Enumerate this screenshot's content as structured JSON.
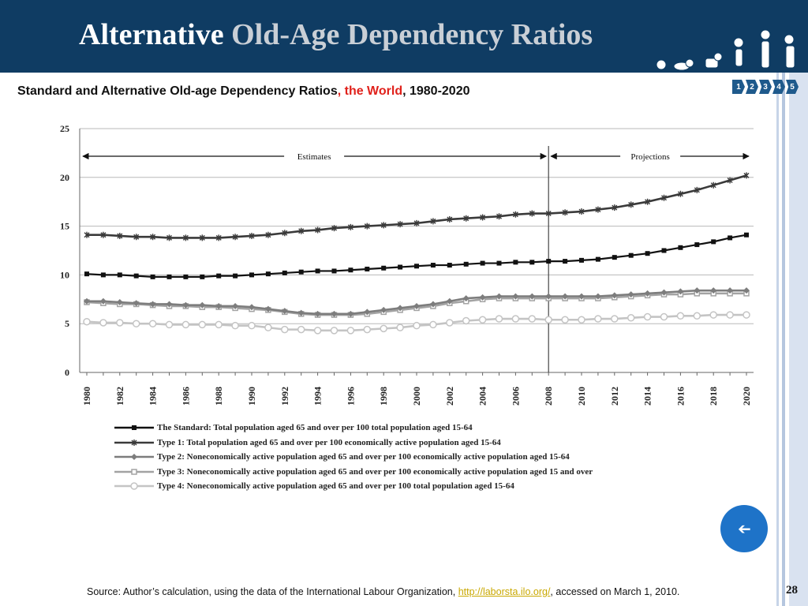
{
  "slide": {
    "title_main": "Alternative",
    "title_highlight": "Old-Age Dependency Ratios",
    "subtitle_part1": "Standard and Alternative Old-age Dependency Ratios",
    "subtitle_world": ", the World",
    "subtitle_part2": ", 1980-2020",
    "nav_tabs": [
      "1",
      "2",
      "3",
      "4",
      "5"
    ],
    "back_icon": "arrow-left-icon",
    "source_prefix": "Source: Author’s calculation, using the data of the International Labour Organization, ",
    "source_link": "http://laborsta.ilo.org/",
    "source_suffix": ", accessed on March 1, 2010.",
    "page_number": "28",
    "colors": {
      "header": "#0f3c63",
      "title_highlight": "#c9cfd6",
      "red": "#e0211b",
      "button": "#1e73c8",
      "link": "#c9a800"
    }
  },
  "chart_data": {
    "type": "line",
    "title": "Standard and Alternative Old-age Dependency Ratios, the World, 1980-2020",
    "x": [
      1980,
      1981,
      1982,
      1983,
      1984,
      1985,
      1986,
      1987,
      1988,
      1989,
      1990,
      1991,
      1992,
      1993,
      1994,
      1995,
      1996,
      1997,
      1998,
      1999,
      2000,
      2001,
      2002,
      2003,
      2004,
      2005,
      2006,
      2007,
      2008,
      2009,
      2010,
      2011,
      2012,
      2013,
      2014,
      2015,
      2016,
      2017,
      2018,
      2019,
      2020
    ],
    "x_tick_labels": [
      "1980",
      "1982",
      "1984",
      "1986",
      "1988",
      "1990",
      "1992",
      "1994",
      "1996",
      "1998",
      "2000",
      "2002",
      "2004",
      "2006",
      "2008",
      "2010",
      "2012",
      "2014",
      "2016",
      "2018",
      "2020"
    ],
    "ylim": [
      0,
      25
    ],
    "y_ticks": [
      "0",
      "5",
      "10",
      "15",
      "20",
      "25"
    ],
    "grid": true,
    "legend_position": "bottom",
    "annotations": {
      "estimates": "Estimates",
      "projections": "Projections",
      "divider_year": 2008
    },
    "series": [
      {
        "name": "The Standard: Total population aged 65 and over per 100 total population aged 15-64",
        "color": "#111111",
        "marker": "square",
        "values": [
          10.1,
          10.0,
          10.0,
          9.9,
          9.8,
          9.8,
          9.8,
          9.8,
          9.9,
          9.9,
          10.0,
          10.1,
          10.2,
          10.3,
          10.4,
          10.4,
          10.5,
          10.6,
          10.7,
          10.8,
          10.9,
          11.0,
          11.0,
          11.1,
          11.2,
          11.2,
          11.3,
          11.3,
          11.4,
          11.4,
          11.5,
          11.6,
          11.8,
          12.0,
          12.2,
          12.5,
          12.8,
          13.1,
          13.4,
          13.8,
          14.1
        ]
      },
      {
        "name": "Type 1: Total population aged 65 and over per 100 economically active population aged 15-64",
        "color": "#3a3a3a",
        "marker": "star",
        "values": [
          14.1,
          14.1,
          14.0,
          13.9,
          13.9,
          13.8,
          13.8,
          13.8,
          13.8,
          13.9,
          14.0,
          14.1,
          14.3,
          14.5,
          14.6,
          14.8,
          14.9,
          15.0,
          15.1,
          15.2,
          15.3,
          15.5,
          15.7,
          15.8,
          15.9,
          16.0,
          16.2,
          16.3,
          16.3,
          16.4,
          16.5,
          16.7,
          16.9,
          17.2,
          17.5,
          17.9,
          18.3,
          18.7,
          19.2,
          19.7,
          20.2
        ]
      },
      {
        "name": "Type 2: Noneconomically active population aged 65 and over per 100 economically active population aged 15-64",
        "color": "#7d7d7d",
        "marker": "diamond",
        "values": [
          7.3,
          7.3,
          7.2,
          7.1,
          7.0,
          7.0,
          6.9,
          6.9,
          6.8,
          6.8,
          6.7,
          6.5,
          6.3,
          6.1,
          6.0,
          6.0,
          6.0,
          6.2,
          6.4,
          6.6,
          6.8,
          7.0,
          7.3,
          7.6,
          7.7,
          7.8,
          7.8,
          7.8,
          7.8,
          7.8,
          7.8,
          7.8,
          7.9,
          8.0,
          8.1,
          8.2,
          8.3,
          8.4,
          8.4,
          8.4,
          8.4
        ]
      },
      {
        "name": "Type 3: Noneconomically active population aged 65 and over per 100 economically active population aged 15 and over",
        "color": "#a3a3a3",
        "marker": "square-open",
        "values": [
          7.2,
          7.1,
          7.0,
          7.0,
          6.9,
          6.8,
          6.8,
          6.7,
          6.7,
          6.6,
          6.5,
          6.4,
          6.2,
          6.0,
          5.9,
          5.9,
          5.9,
          6.0,
          6.2,
          6.4,
          6.6,
          6.8,
          7.1,
          7.3,
          7.5,
          7.6,
          7.6,
          7.6,
          7.6,
          7.6,
          7.6,
          7.6,
          7.7,
          7.8,
          7.9,
          8.0,
          8.0,
          8.1,
          8.1,
          8.1,
          8.1
        ]
      },
      {
        "name": "Type 4: Noneconomically active population aged 65 and over per 100 total population aged 15-64",
        "color": "#c4c4c4",
        "marker": "circle",
        "values": [
          5.2,
          5.1,
          5.1,
          5.0,
          5.0,
          4.9,
          4.9,
          4.9,
          4.9,
          4.8,
          4.8,
          4.6,
          4.4,
          4.4,
          4.3,
          4.3,
          4.3,
          4.4,
          4.5,
          4.6,
          4.8,
          4.9,
          5.1,
          5.3,
          5.4,
          5.5,
          5.5,
          5.5,
          5.4,
          5.4,
          5.4,
          5.5,
          5.5,
          5.6,
          5.7,
          5.7,
          5.8,
          5.8,
          5.9,
          5.9,
          5.9
        ]
      }
    ]
  }
}
